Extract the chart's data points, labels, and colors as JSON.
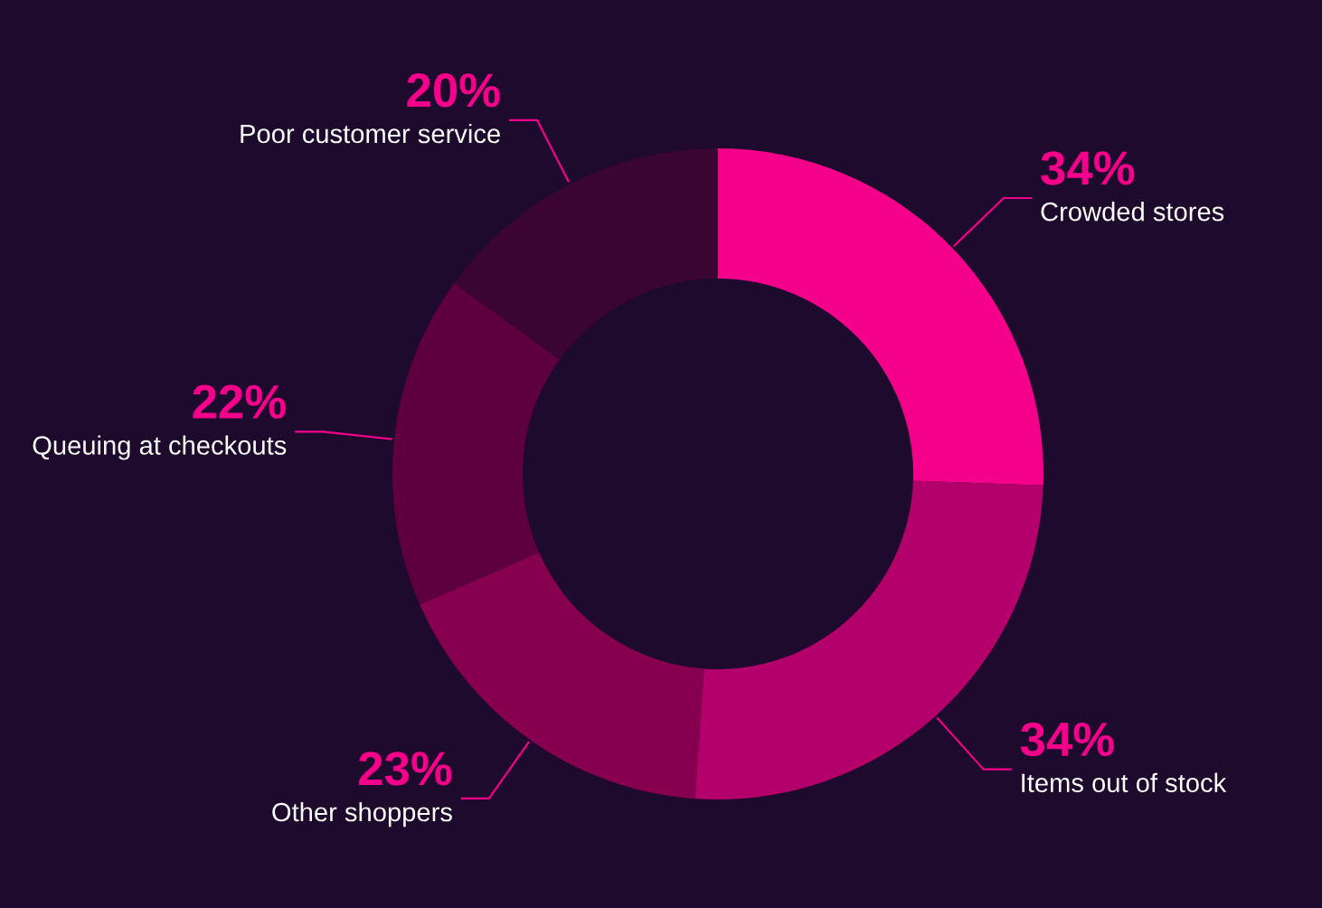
{
  "chart_data": {
    "type": "donut",
    "categories": [
      "Crowded stores",
      "Items out of stock",
      "Other shoppers",
      "Queuing at checkouts",
      "Poor customer service"
    ],
    "values": [
      34,
      34,
      23,
      22,
      20
    ],
    "value_labels": [
      "34%",
      "34%",
      "23%",
      "22%",
      "20%"
    ],
    "colors": [
      "#f5008b",
      "#b3006a",
      "#87004f",
      "#5e0040",
      "#3a0530"
    ]
  }
}
